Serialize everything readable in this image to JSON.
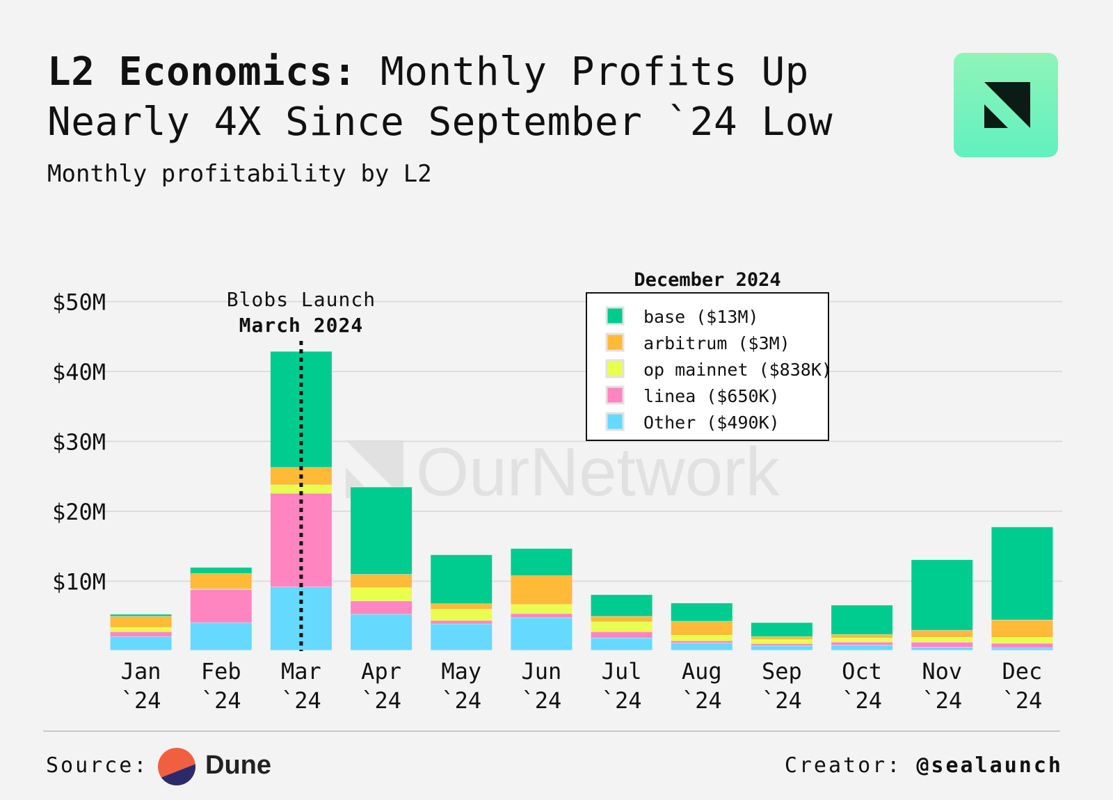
{
  "header": {
    "title_bold": "L2 Economics:",
    "title_rest": " Monthly Profits Up Nearly 4X Since September `24 Low",
    "subtitle": "Monthly profitability by L2"
  },
  "brand": {
    "logo_icon": "ournetwork-logo-icon",
    "watermark": "OurNetwork"
  },
  "footer": {
    "source_label": "Source:",
    "source_name": "Dune",
    "source_icon": "dune-logo-icon",
    "creator_label": "Creator:",
    "creator_handle": "@sealaunch"
  },
  "colors": {
    "background": "#f3f3f3",
    "base": "#00cc8f",
    "arbitrum": "#ffba38",
    "op_mainnet": "#e8ff4d",
    "linea": "#ff85c0",
    "other": "#66d9ff"
  },
  "chart_data": {
    "type": "bar",
    "stacked": true,
    "title": "L2 Economics: Monthly Profits Up Nearly 4X Since September `24 Low",
    "subtitle": "Monthly profitability by L2",
    "categories": [
      [
        "Jan",
        "`24"
      ],
      [
        "Feb",
        "`24"
      ],
      [
        "Mar",
        "`24"
      ],
      [
        "Apr",
        "`24"
      ],
      [
        "May",
        "`24"
      ],
      [
        "Jun",
        "`24"
      ],
      [
        "Jul",
        "`24"
      ],
      [
        "Aug",
        "`24"
      ],
      [
        "Sep",
        "`24"
      ],
      [
        "Oct",
        "`24"
      ],
      [
        "Nov",
        "`24"
      ],
      [
        "Dec",
        "`24"
      ]
    ],
    "series": [
      {
        "key": "other",
        "color": "#66d9ff",
        "values": [
          2.1,
          4.1,
          9.2,
          5.3,
          3.9,
          4.8,
          1.9,
          1.2,
          0.8,
          0.9,
          0.6,
          0.49
        ]
      },
      {
        "key": "linea",
        "color": "#ff85c0",
        "values": [
          0.7,
          4.7,
          13.4,
          1.9,
          0.5,
          0.6,
          0.9,
          0.3,
          0.3,
          0.4,
          0.7,
          0.65
        ]
      },
      {
        "key": "op_mainnet",
        "color": "#e8ff4d",
        "values": [
          0.6,
          0.1,
          1.2,
          1.9,
          1.6,
          1.3,
          1.4,
          0.8,
          0.6,
          0.6,
          0.7,
          0.84
        ]
      },
      {
        "key": "arbitrum",
        "color": "#ffba38",
        "values": [
          1.6,
          2.2,
          2.5,
          1.9,
          0.8,
          4.1,
          0.8,
          2.0,
          0.4,
          0.5,
          1.0,
          2.5
        ]
      },
      {
        "key": "base",
        "color": "#00cc8f",
        "values": [
          0.3,
          0.9,
          16.6,
          12.5,
          7.0,
          3.9,
          3.1,
          2.6,
          2.0,
          4.2,
          10.1,
          13.3
        ]
      }
    ],
    "yticks": [
      10,
      20,
      30,
      40,
      50
    ],
    "ytick_labels": [
      "$10M",
      "$20M",
      "$30M",
      "$40M",
      "$50M"
    ],
    "ylim": [
      0,
      52
    ],
    "grid": true,
    "annotation": {
      "category_index": 2,
      "line1": "Blobs Launch",
      "line2": "March 2024",
      "style": "dotted vertical line"
    },
    "legend": {
      "title": "December 2024",
      "placement": "top-center",
      "entries": [
        {
          "label": "base ($13M)",
          "color": "#00cc8f"
        },
        {
          "label": "arbitrum ($3M)",
          "color": "#ffba38"
        },
        {
          "label": "op mainnet ($838K)",
          "color": "#e8ff4d"
        },
        {
          "label": "linea ($650K)",
          "color": "#ff85c0"
        },
        {
          "label": "Other ($490K)",
          "color": "#66d9ff"
        }
      ]
    }
  }
}
